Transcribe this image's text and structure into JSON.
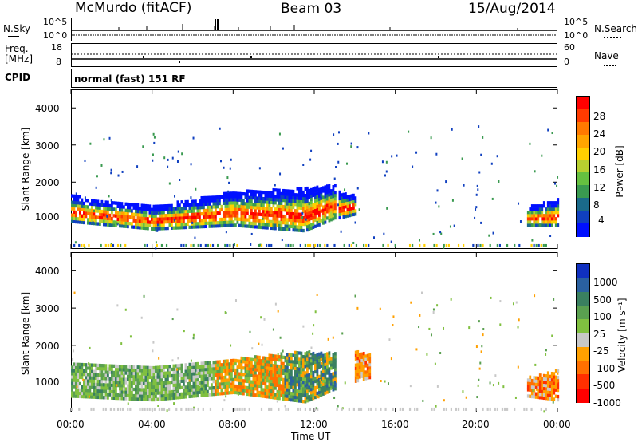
{
  "header": {
    "station": "McMurdo (fitACF)",
    "beam": "Beam 03",
    "date": "15/Aug/2014"
  },
  "noise_panel": {
    "left_label": "N.Sky",
    "right_label": "N.Search",
    "left_ticks": [
      "10^5",
      "10^0"
    ],
    "right_ticks": [
      "10^5",
      "10^0"
    ]
  },
  "freq_panel": {
    "left_label_line1": "Freq.",
    "left_label_line2": "[MHz]",
    "left_ticks": [
      "18",
      "8"
    ],
    "right_label": "Nave",
    "right_ticks": [
      "60",
      "0"
    ]
  },
  "cpid": {
    "label": "CPID",
    "value": "normal (fast) 151 RF"
  },
  "chart_data": [
    {
      "type": "heatmap",
      "title": "",
      "ylabel": "Slant Range [km]",
      "xlabel": "Time UT",
      "ylim": [
        200,
        4500
      ],
      "yticks": [
        "4000",
        "3000",
        "2000",
        "1000"
      ],
      "xticks": [
        "00:00",
        "04:00",
        "08:00",
        "12:00",
        "16:00",
        "20:00",
        "00:00"
      ],
      "colorbar": {
        "label": "Power [dB]",
        "ticks": [
          "28",
          "24",
          "20",
          "16",
          "12",
          "8",
          "4"
        ],
        "colors": [
          "#ff0000",
          "#ff3b00",
          "#ff7a00",
          "#ffa500",
          "#ffd000",
          "#b8d030",
          "#66c040",
          "#3a9a50",
          "#1a6a8a",
          "#1040c0",
          "#0010ff"
        ]
      },
      "bands": [
        {
          "x_h": [
            0.0,
            4.0,
            8.0,
            11.5,
            13.0
          ],
          "low_km": [
            900,
            700,
            800,
            650,
            1000
          ],
          "high_km": [
            1600,
            1300,
            1700,
            1800,
            1900
          ]
        },
        {
          "x_h": [
            13.2,
            14.0
          ],
          "low_km": [
            1000,
            1100
          ],
          "high_km": [
            1700,
            1600
          ]
        },
        {
          "x_h": [
            22.5,
            24.0
          ],
          "low_km": [
            800,
            800
          ],
          "high_km": [
            1300,
            1500
          ]
        }
      ]
    },
    {
      "type": "heatmap",
      "title": "",
      "ylabel": "Slant Range [km]",
      "xlabel": "Time UT",
      "ylim": [
        200,
        4500
      ],
      "yticks": [
        "4000",
        "3000",
        "2000",
        "1000"
      ],
      "xticks": [
        "00:00",
        "04:00",
        "08:00",
        "12:00",
        "16:00",
        "20:00",
        "00:00"
      ],
      "colorbar": {
        "label": "Velocity [m s⁻¹]",
        "ticks": [
          "1000",
          "500",
          "100",
          "25",
          "-25",
          "-100",
          "-500",
          "-1000"
        ],
        "colors": [
          "#1030c0",
          "#2a60a0",
          "#3a8060",
          "#5aa050",
          "#80c040",
          "#c8c8c8",
          "#ffa000",
          "#ff7000",
          "#ff3000",
          "#ff0000"
        ]
      },
      "bands": [
        {
          "x_h": [
            0.0,
            4.0,
            8.0,
            11.5,
            13.0
          ],
          "low_km": [
            600,
            500,
            700,
            450,
            800
          ],
          "high_km": [
            1500,
            1400,
            1600,
            1800,
            1750
          ]
        },
        {
          "x_h": [
            14.0,
            14.7
          ],
          "low_km": [
            1000,
            1100
          ],
          "high_km": [
            1800,
            1700
          ]
        },
        {
          "x_h": [
            22.5,
            24.0
          ],
          "low_km": [
            600,
            500
          ],
          "high_km": [
            1100,
            1300
          ]
        }
      ]
    }
  ],
  "xaxis": {
    "ticks": [
      "00:00",
      "04:00",
      "08:00",
      "12:00",
      "16:00",
      "20:00",
      "00:00"
    ],
    "label": "Time UT"
  }
}
